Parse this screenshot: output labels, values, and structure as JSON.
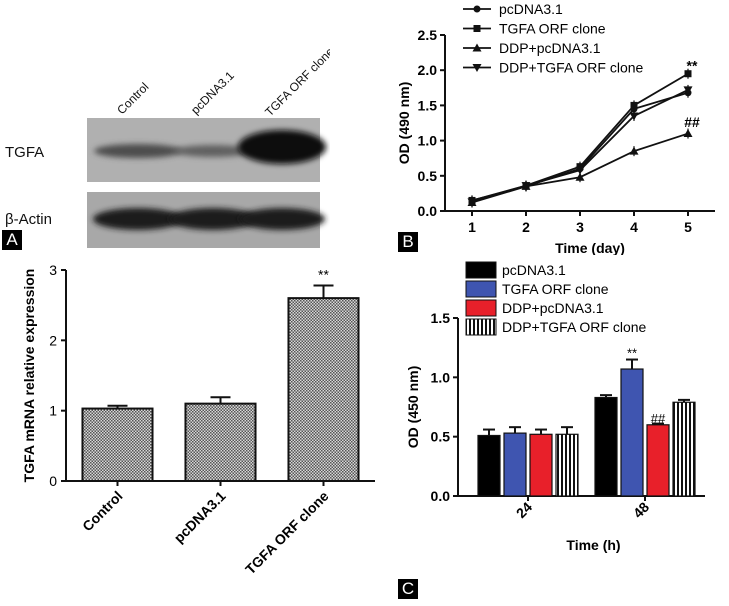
{
  "panel_labels": {
    "A": "A",
    "B": "B",
    "C": "C"
  },
  "western_blot": {
    "lane_labels": [
      "Control",
      "pcDNA3.1",
      "TGFA ORF clone"
    ],
    "row_labels": [
      "TGFA",
      "β-Actin"
    ]
  },
  "chart_data": [
    {
      "panel": "B",
      "type": "line",
      "x": [
        1,
        2,
        3,
        4,
        5
      ],
      "xticks": [
        "1",
        "2",
        "3",
        "4",
        "5"
      ],
      "series": [
        {
          "name": "pcDNA3.1",
          "marker": "circle",
          "values": [
            0.15,
            0.35,
            0.6,
            1.45,
            1.68
          ]
        },
        {
          "name": "TGFA ORF clone",
          "marker": "square",
          "values": [
            0.15,
            0.36,
            0.63,
            1.5,
            1.95
          ]
        },
        {
          "name": "DDP+pcDNA3.1",
          "marker": "triangle-up",
          "values": [
            0.12,
            0.35,
            0.48,
            0.85,
            1.1
          ]
        },
        {
          "name": "DDP+TGFA ORF clone",
          "marker": "triangle-down",
          "values": [
            0.13,
            0.36,
            0.58,
            1.35,
            1.72
          ]
        }
      ],
      "annotations": [
        {
          "text": "**",
          "x": 5,
          "y": 2.05
        },
        {
          "text": "##",
          "x": 5,
          "y": 1.25
        }
      ],
      "xlabel": "Time (day)",
      "ylabel": "OD (490 nm)",
      "ylim": [
        0,
        2.5
      ],
      "yticks": [
        "0.0",
        "0.5",
        "1.0",
        "1.5",
        "2.0",
        "2.5"
      ],
      "legend": "top"
    },
    {
      "panel": "A",
      "type": "bar",
      "categories": [
        "Control",
        "pcDNA3.1",
        "TGFA ORF clone"
      ],
      "values": [
        1.03,
        1.1,
        2.6
      ],
      "errors": [
        0.04,
        0.09,
        0.18
      ],
      "annotations": [
        {
          "text": "**",
          "category": "TGFA ORF clone"
        }
      ],
      "ylabel": "TGFA mRNA relative expression",
      "ylim": [
        0,
        3
      ],
      "yticks": [
        "0",
        "1",
        "2",
        "3"
      ],
      "pattern": "checkered"
    },
    {
      "panel": "C",
      "type": "bar",
      "categories": [
        "24",
        "48"
      ],
      "series": [
        {
          "name": "pcDNA3.1",
          "color": "#000000",
          "values": [
            0.51,
            0.83
          ],
          "errors": [
            0.05,
            0.02
          ]
        },
        {
          "name": "TGFA ORF clone",
          "color": "#3f55b0",
          "values": [
            0.53,
            1.07
          ],
          "errors": [
            0.05,
            0.08
          ]
        },
        {
          "name": "DDP+pcDNA3.1",
          "color": "#e8202a",
          "values": [
            0.52,
            0.6
          ],
          "errors": [
            0.04,
            0.01
          ]
        },
        {
          "name": "DDP+TGFA ORF clone",
          "color": "#ffffff",
          "pattern": "vertical-stripes",
          "values": [
            0.52,
            0.79
          ],
          "errors": [
            0.06,
            0.02
          ]
        }
      ],
      "annotations": [
        {
          "text": "**",
          "category": "48",
          "series": "TGFA ORF clone"
        },
        {
          "text": "##",
          "category": "48",
          "series": "DDP+pcDNA3.1"
        }
      ],
      "xlabel": "Time (h)",
      "ylabel": "OD (450 nm)",
      "ylim": [
        0,
        1.5
      ],
      "yticks": [
        "0.0",
        "0.5",
        "1.0",
        "1.5"
      ],
      "legend": "top-left"
    }
  ]
}
